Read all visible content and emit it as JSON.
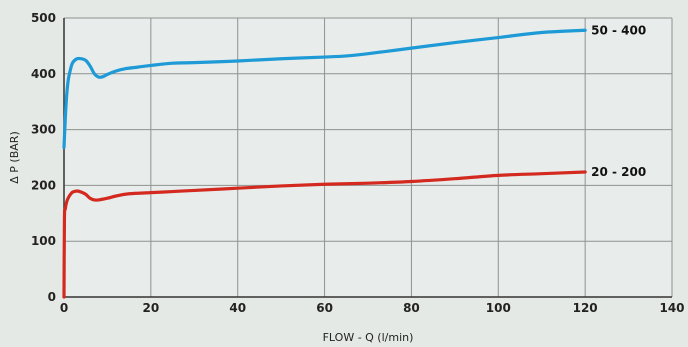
{
  "chart_data": {
    "type": "line",
    "xlabel": "FLOW - Q (l/min)",
    "ylabel": "Δ P (BAR)",
    "xlim": [
      0,
      140
    ],
    "ylim": [
      0,
      500
    ],
    "xticks": [
      0,
      20,
      40,
      60,
      80,
      100,
      120,
      140
    ],
    "yticks": [
      0,
      100,
      200,
      300,
      400,
      500
    ],
    "grid": true,
    "series": [
      {
        "name": "50 - 400",
        "color": "#1e9ad6",
        "x": [
          0,
          0.3,
          0.6,
          1,
          1.5,
          2,
          3,
          4,
          5,
          6,
          7,
          8,
          9,
          10,
          12,
          14,
          17,
          20,
          25,
          30,
          40,
          50,
          60,
          65,
          70,
          80,
          90,
          100,
          110,
          120
        ],
        "y": [
          268,
          320,
          360,
          390,
          408,
          420,
          427,
          427,
          424,
          414,
          400,
          394,
          395,
          399,
          405,
          409,
          412,
          415,
          419,
          420,
          423,
          427,
          430,
          432,
          436,
          446,
          456,
          465,
          474,
          478
        ]
      },
      {
        "name": "20 - 200",
        "color": "#d3291f",
        "x": [
          0,
          0.1,
          0.3,
          0.6,
          1,
          1.5,
          2,
          3,
          4,
          5,
          6,
          7,
          8,
          10,
          12,
          15,
          20,
          25,
          30,
          40,
          50,
          60,
          70,
          80,
          90,
          100,
          110,
          120
        ],
        "y": [
          0,
          140,
          158,
          170,
          178,
          184,
          188,
          190,
          188,
          184,
          177,
          174,
          174,
          177,
          181,
          185,
          187,
          189,
          191,
          195,
          199,
          202,
          204,
          207,
          212,
          218,
          221,
          224
        ]
      }
    ]
  }
}
